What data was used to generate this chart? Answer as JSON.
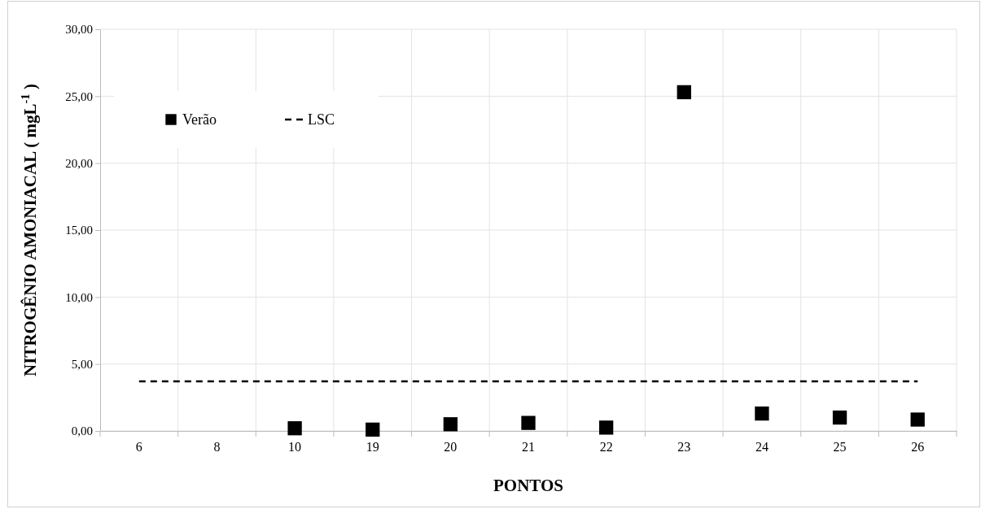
{
  "chart_data": {
    "type": "scatter",
    "xlabel": "PONTOS",
    "ylabel": "NITROGÊNIO AMONIACAL ( mgL$^{-1}$ )",
    "categories": [
      "6",
      "8",
      "10",
      "19",
      "20",
      "21",
      "22",
      "23",
      "24",
      "25",
      "26"
    ],
    "series": [
      {
        "name": "Verão",
        "marker": "square",
        "color": "#000000",
        "values": [
          null,
          null,
          0.2,
          0.1,
          0.5,
          0.6,
          0.25,
          25.3,
          1.3,
          1.0,
          0.85
        ]
      },
      {
        "name": "LSC",
        "type": "line",
        "marker": "none",
        "line_style": "dashed",
        "color": "#000000",
        "values": [
          3.7,
          3.7,
          3.7,
          3.7,
          3.7,
          3.7,
          3.7,
          3.7,
          3.7,
          3.7,
          3.7
        ]
      }
    ],
    "ylim": [
      0,
      30
    ],
    "yticks": [
      {
        "value": 0,
        "label": "0,00"
      },
      {
        "value": 5,
        "label": "5,00"
      },
      {
        "value": 10,
        "label": "10,00"
      },
      {
        "value": 15,
        "label": "15,00"
      },
      {
        "value": 20,
        "label": "20,00"
      },
      {
        "value": 25,
        "label": "25,00"
      },
      {
        "value": 30,
        "label": "30,00"
      }
    ],
    "grid": true,
    "legend": "top left"
  }
}
